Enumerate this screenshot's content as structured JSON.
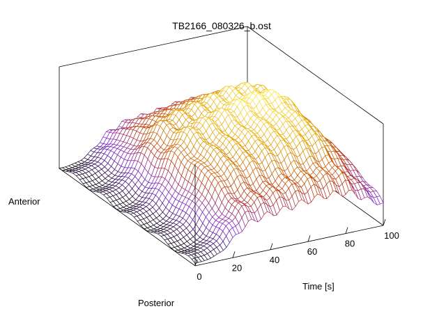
{
  "chart_data": {
    "type": "surface-3d",
    "title": "TB2166_080326_b.ost",
    "xlabel": "Time [s]",
    "x_ticks": [
      "0",
      "20",
      "40",
      "60",
      "80",
      "100"
    ],
    "xlim": [
      0,
      100
    ],
    "y_end_labels": {
      "front": "Posterior",
      "back": "Anterior"
    },
    "colormap": [
      "#000000",
      "#7b1fd6",
      "#c0390a",
      "#e0a000",
      "#ffee55"
    ],
    "grid": false,
    "rows": 40,
    "cols": 60
  }
}
